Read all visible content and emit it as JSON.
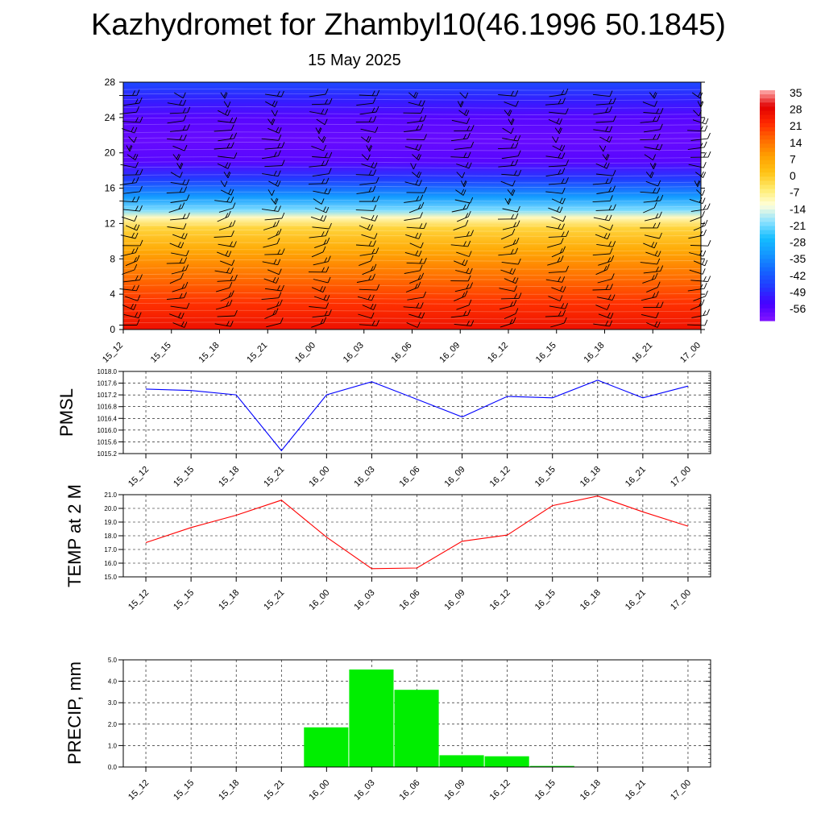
{
  "title": "Kazhydromet for Zhambyl10(46.1996 50.1845)",
  "subtitle": "15 May 2025",
  "chart_data": [
    {
      "type": "heatmap",
      "name": "vertical-profile",
      "x": [
        "15_12",
        "15_15",
        "15_18",
        "15_21",
        "16_00",
        "16_03",
        "16_06",
        "16_09",
        "16_12",
        "16_15",
        "16_18",
        "16_21",
        "17_00"
      ],
      "ylim": [
        0,
        28
      ],
      "yticks": [
        0,
        4,
        8,
        12,
        16,
        20,
        24,
        28
      ],
      "colorbar": {
        "labels": [
          "35",
          "28",
          "21",
          "14",
          "7",
          "0",
          "-7",
          "-14",
          "-21",
          "-28",
          "-35",
          "-42",
          "-49",
          "-56"
        ],
        "range": [
          -63,
          35
        ]
      },
      "profile": [
        {
          "level": 0,
          "value": 25
        },
        {
          "level": 3,
          "value": 20
        },
        {
          "level": 6,
          "value": 13
        },
        {
          "level": 9,
          "value": 5
        },
        {
          "level": 11.5,
          "value": -3
        },
        {
          "level": 12.7,
          "value": -12
        },
        {
          "level": 13.5,
          "value": -22
        },
        {
          "level": 15,
          "value": -34
        },
        {
          "level": 17,
          "value": -48
        },
        {
          "level": 19,
          "value": -58
        },
        {
          "level": 21.5,
          "value": -60
        },
        {
          "level": 24,
          "value": -58
        },
        {
          "level": 26,
          "value": -52
        },
        {
          "level": 28,
          "value": -46
        }
      ]
    },
    {
      "type": "line",
      "name": "pmsl",
      "ylabel": "PMSL",
      "x": [
        "15_12",
        "15_15",
        "15_18",
        "15_21",
        "16_00",
        "16_03",
        "16_06",
        "16_09",
        "16_12",
        "16_15",
        "16_18",
        "16_21",
        "17_00"
      ],
      "values": [
        1017.4,
        1017.35,
        1017.2,
        1015.3,
        1017.2,
        1017.65,
        1017.05,
        1016.45,
        1017.15,
        1017.1,
        1017.7,
        1017.1,
        1017.5
      ],
      "ylim": [
        1015.2,
        1018.0
      ],
      "yticks": [
        "1015.2",
        "1015.6",
        "1016.0",
        "1016.4",
        "1016.8",
        "1017.2",
        "1017.6",
        "1018.0"
      ],
      "color": "#0000ff",
      "grid": true
    },
    {
      "type": "line",
      "name": "temp-2m",
      "ylabel": "TEMP at 2 M",
      "x": [
        "15_12",
        "15_15",
        "15_18",
        "15_21",
        "16_00",
        "16_03",
        "16_06",
        "16_09",
        "16_12",
        "16_15",
        "16_18",
        "16_21",
        "17_00"
      ],
      "values": [
        17.5,
        18.6,
        19.5,
        20.6,
        17.9,
        15.6,
        15.65,
        17.6,
        18.05,
        20.2,
        20.9,
        19.75,
        18.7
      ],
      "ylim": [
        15.0,
        21.0
      ],
      "yticks": [
        "15.0",
        "16.0",
        "17.0",
        "18.0",
        "19.0",
        "20.0",
        "21.0"
      ],
      "color": "#ff0000",
      "grid": true
    },
    {
      "type": "bar",
      "name": "precip",
      "ylabel": "PRECIP, mm",
      "x": [
        "15_12",
        "15_15",
        "15_18",
        "15_21",
        "16_00",
        "16_03",
        "16_06",
        "16_09",
        "16_12",
        "16_15",
        "16_18",
        "16_21",
        "17_00"
      ],
      "values": [
        0,
        0,
        0,
        0,
        1.85,
        4.55,
        3.6,
        0.55,
        0.5,
        0.05,
        0,
        0,
        0
      ],
      "ylim": [
        0,
        5.0
      ],
      "yticks": [
        "0.0",
        "1.0",
        "2.0",
        "3.0",
        "4.0",
        "5.0"
      ],
      "color": "#00ee00",
      "grid": true
    }
  ]
}
